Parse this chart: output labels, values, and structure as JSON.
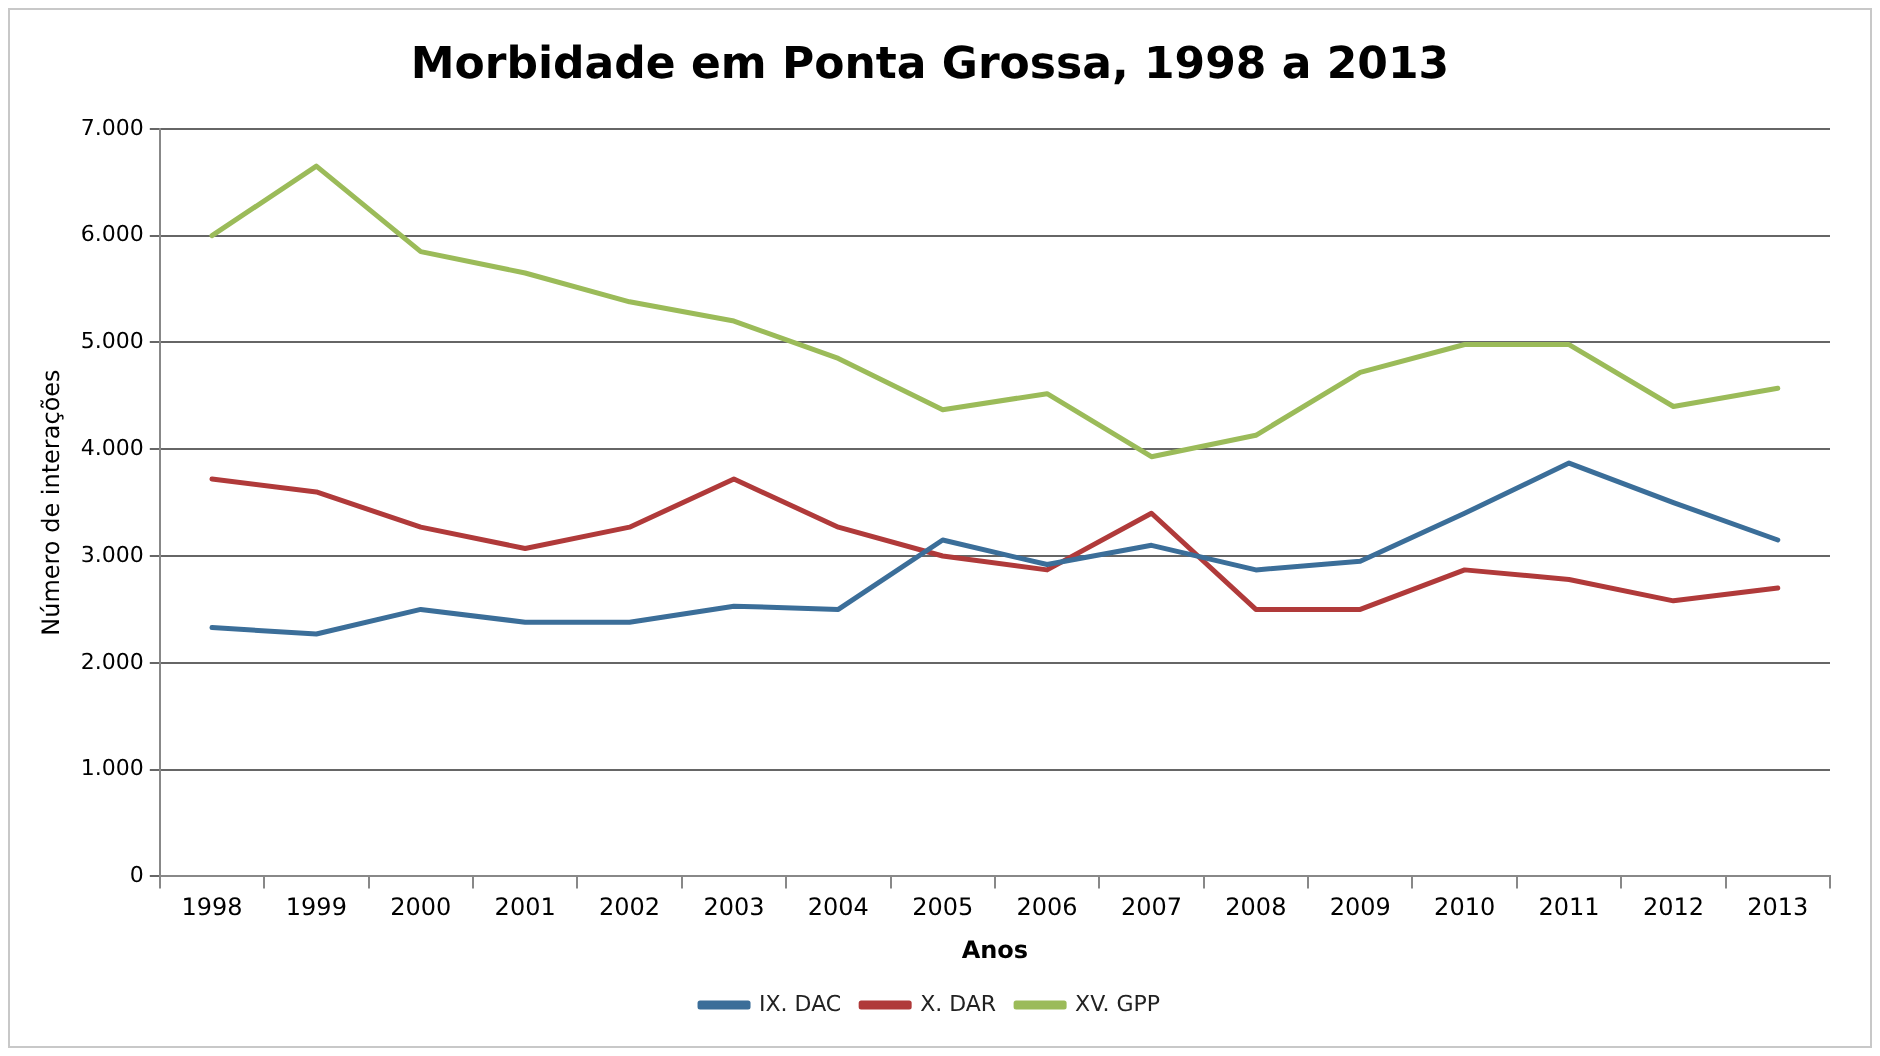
{
  "chart_data": {
    "type": "line",
    "title": "Morbidade em Ponta Grossa, 1998 a 2013",
    "xlabel": "Anos",
    "ylabel": "Número de interações",
    "categories": [
      "1998",
      "1999",
      "2000",
      "2001",
      "2002",
      "2003",
      "2004",
      "2005",
      "2006",
      "2007",
      "2008",
      "2009",
      "2010",
      "2011",
      "2012",
      "2013"
    ],
    "series": [
      {
        "name": "IX. DAC",
        "color": "#3b6e99",
        "values": [
          2330,
          2270,
          2500,
          2380,
          2380,
          2530,
          2500,
          3150,
          2920,
          3100,
          2870,
          2950,
          3400,
          3870,
          3500,
          3150
        ]
      },
      {
        "name": "X. DAR",
        "color": "#b03a3a",
        "values": [
          3720,
          3600,
          3270,
          3070,
          3270,
          3720,
          3270,
          3000,
          2870,
          3400,
          2500,
          2500,
          2870,
          2780,
          2580,
          2700
        ]
      },
      {
        "name": "XV. GPP",
        "color": "#9bbb59",
        "values": [
          6000,
          6650,
          5850,
          5650,
          5380,
          5200,
          4850,
          4370,
          4520,
          3930,
          4130,
          4720,
          4980,
          4980,
          4400,
          4570
        ]
      }
    ],
    "ylim": [
      0,
      7000
    ],
    "yticks": [
      {
        "value": 0,
        "label": "0"
      },
      {
        "value": 1000,
        "label": "1.000"
      },
      {
        "value": 2000,
        "label": "2.000"
      },
      {
        "value": 3000,
        "label": "3.000"
      },
      {
        "value": 4000,
        "label": "4.000"
      },
      {
        "value": 5000,
        "label": "5.000"
      },
      {
        "value": 6000,
        "label": "6.000"
      },
      {
        "value": 7000,
        "label": "7.000"
      }
    ],
    "grid": "y",
    "legend": "bottom",
    "marker": "none",
    "line_style": "solid"
  }
}
